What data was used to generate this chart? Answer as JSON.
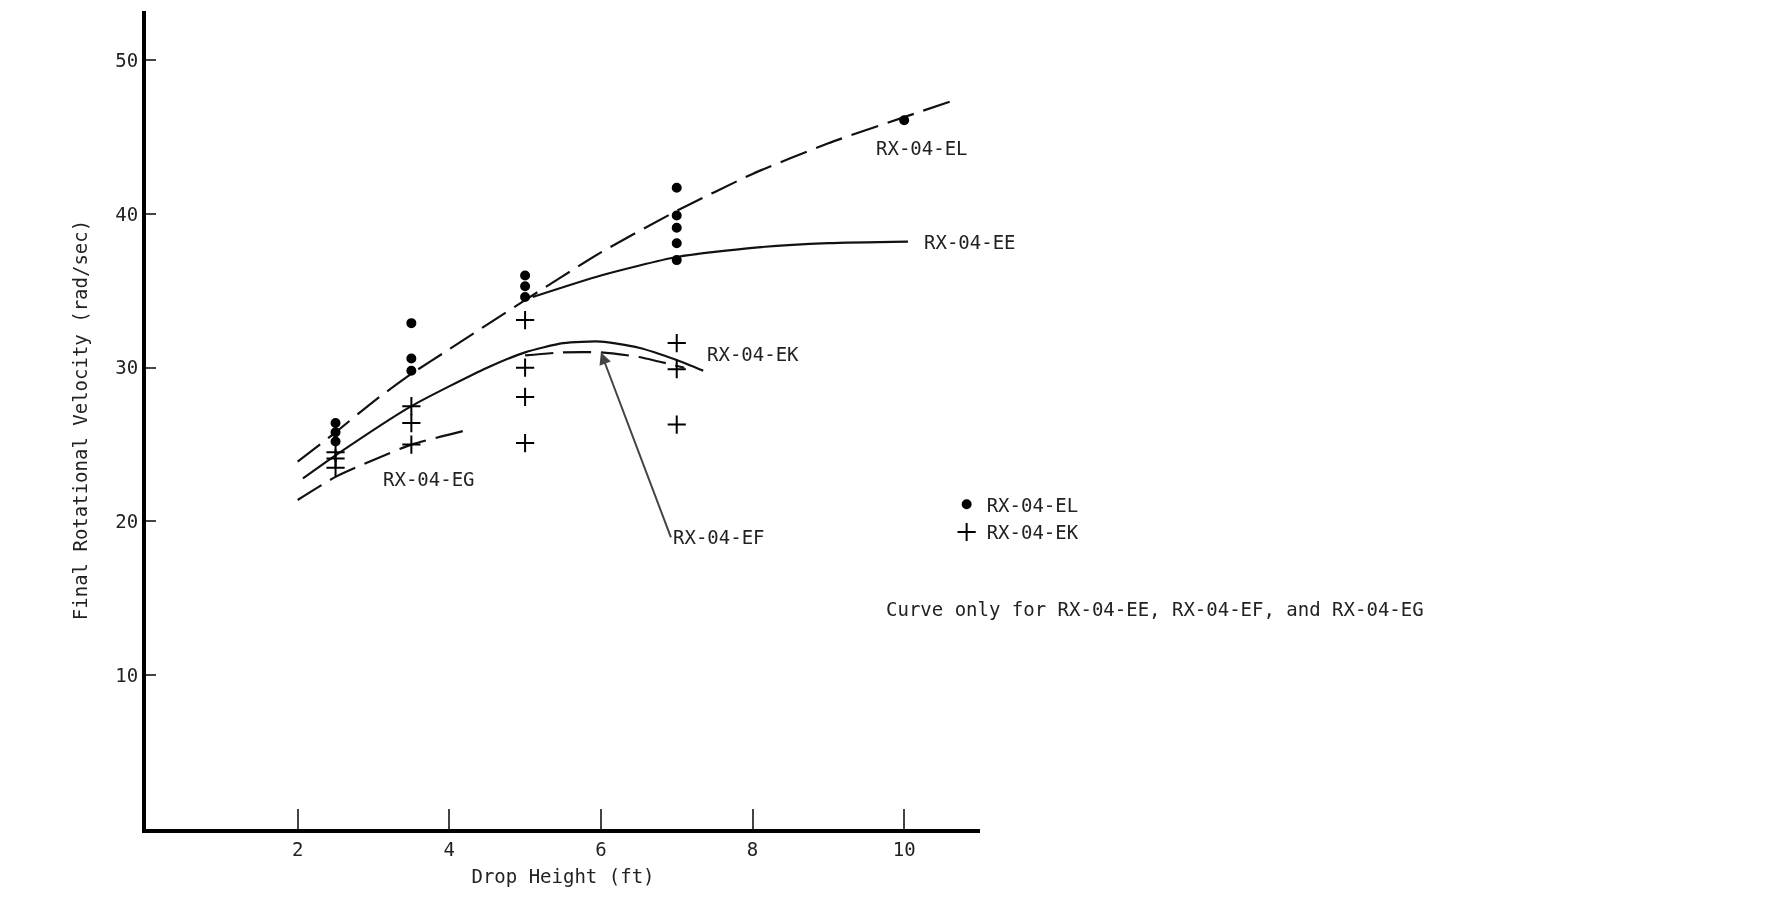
{
  "chart_data": {
    "type": "line",
    "xlabel": "Drop Height (ft)",
    "ylabel": "Final Rotational Velocity (rad/sec)",
    "xlim": [
      0,
      11
    ],
    "xticks": [
      2,
      4,
      6,
      8,
      10
    ],
    "ylim": [
      0,
      53.2
    ],
    "yticks": [
      10,
      20,
      30,
      40,
      50
    ],
    "grid": false,
    "legend": "right",
    "series": [
      {
        "name": "RX-04-EL",
        "color": "#111111",
        "line_style": "dashed",
        "x": [
          2.0,
          2.5,
          3,
          3.5,
          4,
          5,
          6,
          7,
          8,
          9,
          10,
          10.6
        ],
        "values": [
          23.9,
          25.8,
          27.8,
          29.6,
          31.2,
          34.4,
          37.5,
          40.2,
          42.6,
          44.6,
          46.3,
          47.3
        ]
      },
      {
        "name": "RX-04-EE",
        "color": "#111111",
        "line_style": "solid",
        "x": [
          5.1,
          6,
          7,
          8,
          9,
          10.05
        ],
        "values": [
          34.6,
          36.0,
          37.2,
          37.8,
          38.1,
          38.2
        ]
      },
      {
        "name": "RX-04-EK",
        "color": "#111111",
        "line_style": "solid",
        "x": [
          2.07,
          2.5,
          3.5,
          4.5,
          5,
          5.5,
          6,
          6.5,
          7,
          7.35
        ],
        "values": [
          22.8,
          24.3,
          27.5,
          30.0,
          31.0,
          31.6,
          31.7,
          31.3,
          30.5,
          29.8
        ]
      },
      {
        "name": "RX-04-EF",
        "color": "#111111",
        "line_style": "dashed",
        "x": [
          5.0,
          5.5,
          6,
          6.5,
          7.1
        ],
        "values": [
          30.8,
          31.0,
          31.0,
          30.7,
          30.0
        ]
      },
      {
        "name": "RX-04-EG",
        "color": "#111111",
        "line_style": "dashed",
        "x": [
          2.0,
          2.5,
          3,
          3.5,
          4.2
        ],
        "values": [
          21.4,
          22.9,
          24.0,
          25.0,
          25.9
        ]
      },
      {
        "type": "scatter",
        "name": "RX-04-EL",
        "color": "#000000",
        "marker": "circle",
        "x": [
          2.5,
          2.5,
          2.5,
          3.5,
          3.5,
          3.5,
          5,
          5,
          5,
          7,
          7,
          7,
          7,
          7,
          10
        ],
        "values": [
          26.4,
          25.8,
          25.2,
          32.9,
          30.6,
          29.8,
          36.0,
          35.3,
          34.6,
          41.7,
          39.9,
          39.1,
          38.1,
          37.0,
          46.1
        ]
      },
      {
        "type": "scatter",
        "name": "RX-04-EK",
        "color": "#000000",
        "marker": "cross",
        "x": [
          2.5,
          2.5,
          2.5,
          3.5,
          3.5,
          3.5,
          5,
          5,
          5,
          5,
          7,
          7,
          7
        ],
        "values": [
          24.5,
          24.1,
          23.5,
          27.5,
          26.4,
          25.0,
          33.1,
          30.0,
          28.1,
          25.1,
          31.6,
          29.9,
          26.3
        ]
      }
    ],
    "annotations": [
      "Curve only for RX-04-EE, RX-04-EF, and RX-04-EG"
    ]
  }
}
